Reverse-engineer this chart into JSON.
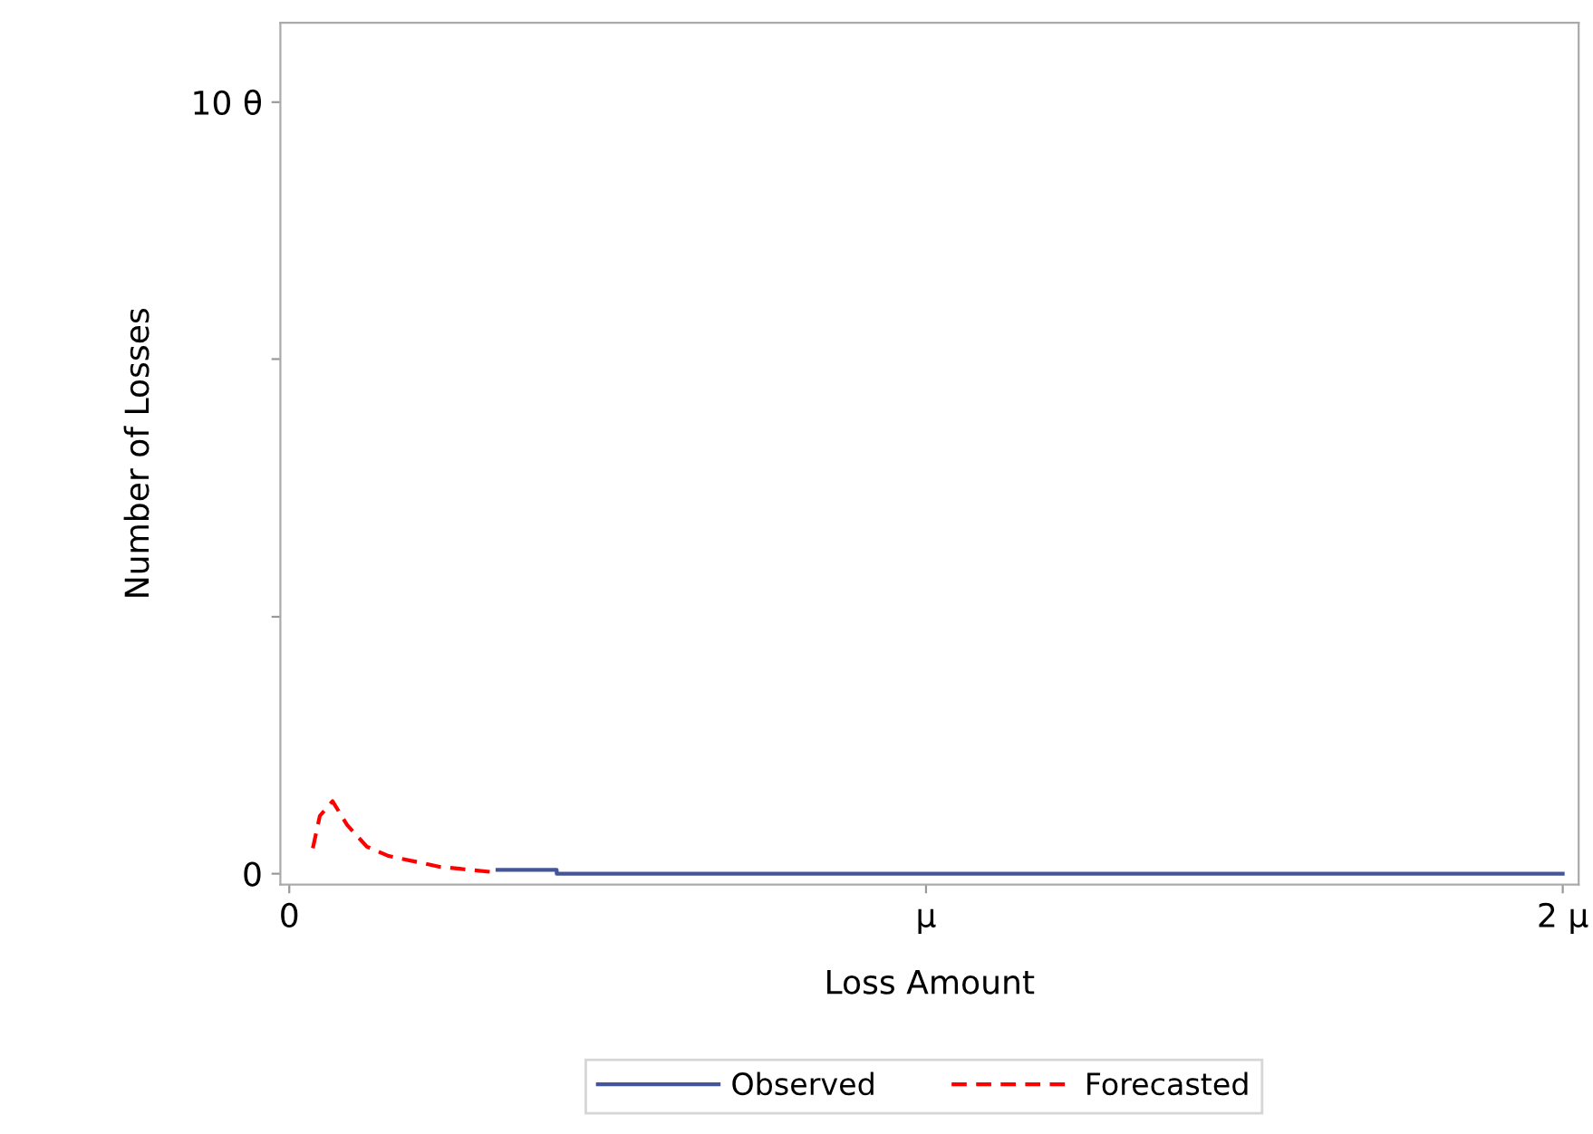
{
  "chart_data": {
    "type": "line",
    "xlabel": "Loss Amount",
    "ylabel": "Number of Losses",
    "xlim": [
      -0.014,
      2.025
    ],
    "ylim": [
      -0.14,
      11.03
    ],
    "xticks": [
      0,
      {
        "value": 1,
        "label": "μ"
      },
      {
        "value": 2,
        "label": "2 μ"
      }
    ],
    "yticks": [
      0,
      {
        "value": 3.33,
        "label": null
      },
      {
        "value": 6.67,
        "label": null
      },
      {
        "value": 10,
        "label": "10 θ"
      }
    ],
    "grid": false,
    "legend": "bottom",
    "marker": "none",
    "series": [
      {
        "name": "Observed",
        "color": "#445599",
        "line_style": "solid",
        "x": [
          0.327,
          0.42,
          0.42,
          2.0
        ],
        "values": [
          0.05,
          0.05,
          0.0,
          0.0
        ]
      },
      {
        "name": "Forecasted",
        "color": "#ff0000",
        "line_style": "dashed",
        "x": [
          0.037,
          0.048,
          0.068,
          0.091,
          0.122,
          0.156,
          0.236,
          0.321
        ],
        "values": [
          0.33,
          0.75,
          0.94,
          0.63,
          0.35,
          0.23,
          0.09,
          0.02
        ]
      }
    ]
  }
}
